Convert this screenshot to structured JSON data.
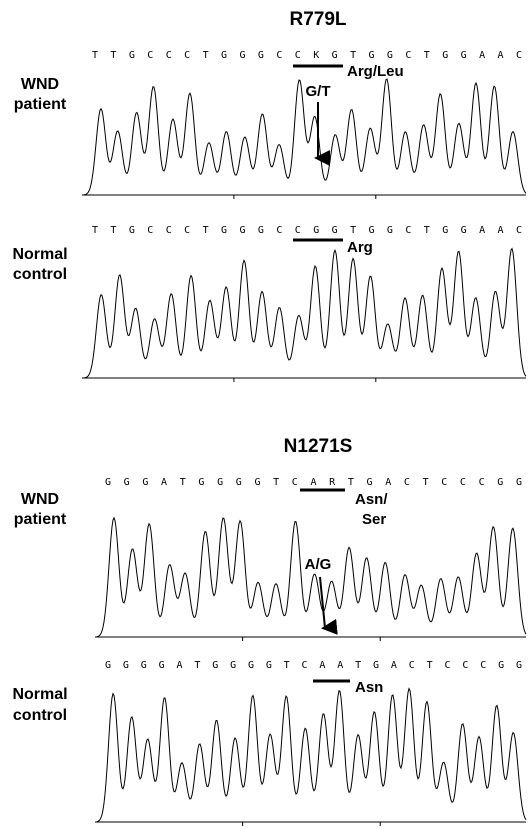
{
  "sections": [
    {
      "title": "R779L",
      "panels": [
        {
          "label": [
            "WND",
            "patient"
          ],
          "sequence": "TTGCCCTGGGCCKGTGGCTGGAAC",
          "annotation": [
            "Arg/Leu"
          ],
          "arrow_label": "G/T"
        },
        {
          "label": [
            "Normal",
            "control"
          ],
          "sequence": "TTGCCCTGGGCCGGTGGCTGGAAC",
          "annotation": [
            "Arg"
          ]
        }
      ]
    },
    {
      "title": "N1271S",
      "panels": [
        {
          "label": [
            "WND",
            "patient"
          ],
          "sequence": "GGGATGGGGTCARTGACTCCCGG",
          "annotation": [
            "Asn/",
            "Ser"
          ],
          "arrow_label": "A/G"
        },
        {
          "label": [
            "Normal",
            "control"
          ],
          "sequence": "GGGGATGGGGTCAATGACTCCCGG",
          "annotation": [
            "Asn"
          ]
        }
      ]
    }
  ]
}
